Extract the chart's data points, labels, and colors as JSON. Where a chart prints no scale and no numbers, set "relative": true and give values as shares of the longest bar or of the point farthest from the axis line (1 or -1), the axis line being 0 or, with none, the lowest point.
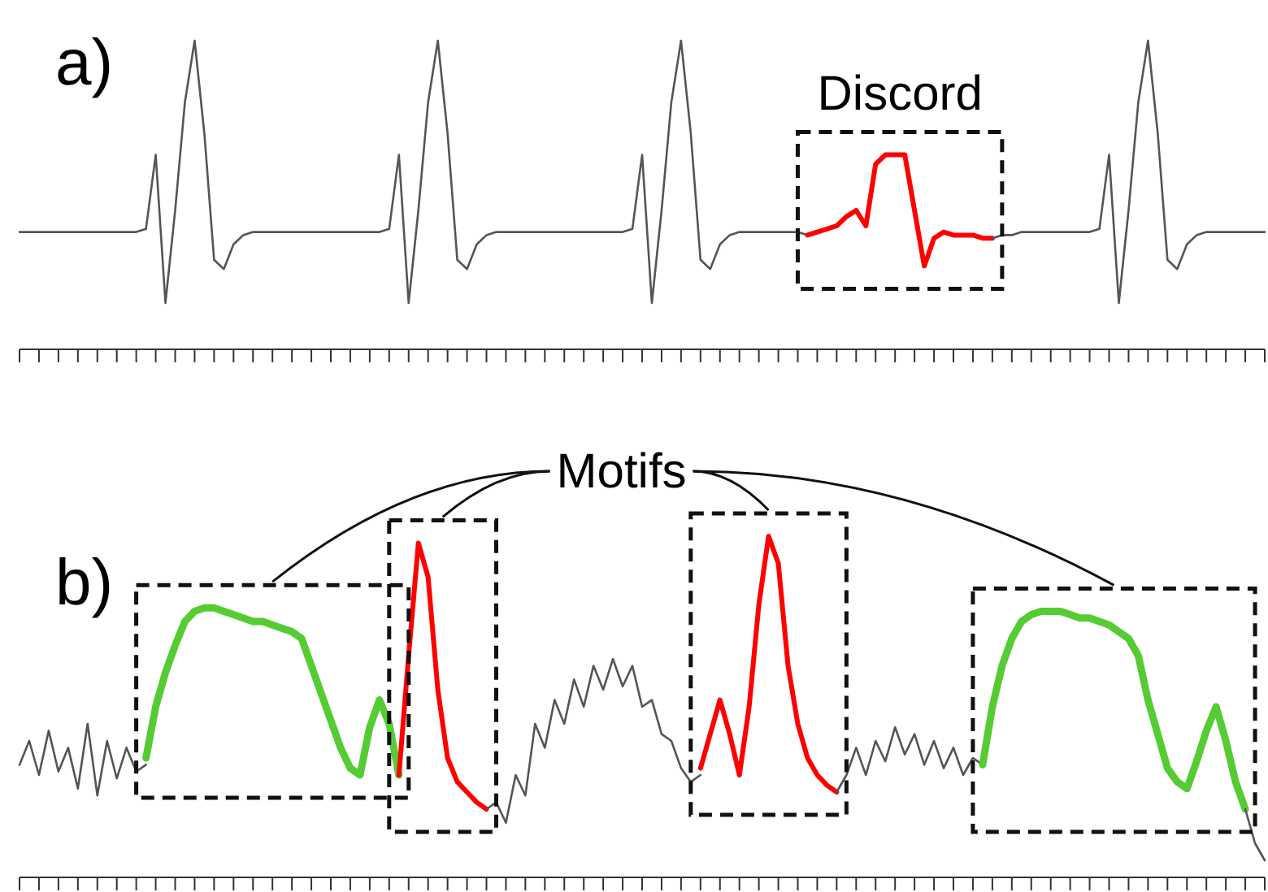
{
  "chart_data": [
    {
      "type": "line",
      "title": "a)",
      "relative": true,
      "categories": [
        null,
        null,
        null,
        null,
        null,
        null,
        null,
        null,
        null,
        null,
        null,
        null,
        null,
        null,
        null,
        null,
        null,
        null,
        null,
        null,
        null,
        null,
        null,
        null,
        null,
        null,
        null,
        null,
        null,
        null,
        null,
        null,
        null,
        null,
        null,
        null,
        null,
        null,
        null,
        null,
        null,
        null,
        null,
        null,
        null,
        null,
        null,
        null,
        null,
        null,
        null,
        null,
        null,
        null,
        null,
        null,
        null,
        null,
        null,
        null,
        null,
        null,
        null,
        null,
        null,
        null,
        null,
        null,
        null,
        null,
        null,
        null,
        null,
        null,
        null,
        null,
        null,
        null,
        null,
        null,
        null,
        null,
        null,
        null,
        null,
        null,
        null,
        null,
        null,
        null,
        null,
        null,
        null,
        null,
        null,
        null,
        null,
        null,
        null,
        null,
        null,
        null,
        null,
        null,
        null,
        null,
        null,
        null,
        null,
        null,
        null,
        null,
        null,
        null,
        null,
        null,
        null,
        null,
        null,
        null,
        null,
        null,
        null,
        null,
        null,
        null,
        null,
        null,
        null
      ],
      "series": [
        {
          "color": "#555555",
          "values": [
            0.38,
            0.38,
            0.38,
            0.38,
            0.38,
            0.38,
            0.38,
            0.38,
            0.38,
            0.38,
            0.38,
            0.38,
            0.38,
            0.39,
            0.63,
            0.15,
            0.45,
            0.8,
            1,
            0.7,
            0.29,
            0.26,
            0.34,
            0.37,
            0.38,
            0.38,
            0.38,
            0.38,
            0.38,
            0.38,
            0.38,
            0.38,
            0.38,
            0.38,
            0.38,
            0.38,
            0.38,
            0.38,
            0.39,
            0.63,
            0.15,
            0.45,
            0.8,
            1,
            0.7,
            0.29,
            0.26,
            0.34,
            0.37,
            0.38,
            0.38,
            0.38,
            0.38,
            0.38,
            0.38,
            0.38,
            0.38,
            0.38,
            0.38,
            0.38,
            0.38,
            0.38,
            0.38,
            0.39,
            0.63,
            0.15,
            0.45,
            0.8,
            1,
            0.7,
            0.29,
            0.26,
            0.34,
            0.37,
            0.38,
            0.38,
            0.38,
            0.38,
            0.38,
            0.38,
            0.38,
            0.37,
            null,
            null,
            null,
            null,
            null,
            null,
            null,
            null,
            null,
            null,
            null,
            null,
            null,
            null,
            null,
            null,
            null,
            null,
            null,
            null,
            null,
            null,
            null,
            null,
            null,
            null,
            null,
            null,
            null,
            null,
            null,
            null,
            null,
            null,
            null,
            null,
            null,
            null,
            null,
            null,
            null,
            null,
            null,
            null,
            null,
            null,
            null
          ]
        },
        {
          "color": "#ff0000",
          "values": [
            null,
            null,
            null,
            null,
            null,
            null,
            null,
            null,
            null,
            null,
            null,
            null,
            null,
            null,
            null,
            null,
            null,
            null,
            null,
            null,
            null,
            null,
            null,
            null,
            null,
            null,
            null,
            null,
            null,
            null,
            null,
            null,
            null,
            null,
            null,
            null,
            null,
            null,
            null,
            null,
            null,
            null,
            null,
            null,
            null,
            null,
            null,
            null,
            null,
            null,
            null,
            null,
            null,
            null,
            null,
            null,
            null,
            null,
            null,
            null,
            null,
            null,
            null,
            null,
            null,
            null,
            null,
            null,
            null,
            null,
            null,
            null,
            null,
            null,
            null,
            null,
            null,
            null,
            null,
            null,
            null,
            0.37,
            0.38,
            0.39,
            0.4,
            0.43,
            0.45,
            0.4,
            0.6,
            0.63,
            0.63,
            0.63,
            0.45,
            0.27,
            0.36,
            0.38,
            0.37,
            0.37,
            0.37,
            0.36,
            0.36,
            null,
            null,
            null,
            null,
            null,
            null,
            null,
            null,
            null,
            null,
            null,
            null,
            null,
            null,
            null,
            null,
            null,
            null,
            null,
            null,
            null,
            null,
            null,
            null,
            null,
            null,
            null,
            null
          ]
        },
        {
          "color": "#555555",
          "values": [
            null,
            null,
            null,
            null,
            null,
            null,
            null,
            null,
            null,
            null,
            null,
            null,
            null,
            null,
            null,
            null,
            null,
            null,
            null,
            null,
            null,
            null,
            null,
            null,
            null,
            null,
            null,
            null,
            null,
            null,
            null,
            null,
            null,
            null,
            null,
            null,
            null,
            null,
            null,
            null,
            null,
            null,
            null,
            null,
            null,
            null,
            null,
            null,
            null,
            null,
            null,
            null,
            null,
            null,
            null,
            null,
            null,
            null,
            null,
            null,
            null,
            null,
            null,
            null,
            null,
            null,
            null,
            null,
            null,
            null,
            null,
            null,
            null,
            null,
            null,
            null,
            null,
            null,
            null,
            null,
            null,
            null,
            null,
            null,
            null,
            null,
            null,
            null,
            null,
            null,
            null,
            null,
            null,
            null,
            null,
            null,
            null,
            null,
            null,
            null,
            0.36,
            0.37,
            0.37,
            0.38,
            0.38,
            0.38,
            0.38,
            0.38,
            0.38,
            0.38,
            0.38,
            0.39,
            0.63,
            0.15,
            0.45,
            0.8,
            1,
            0.7,
            0.29,
            0.26,
            0.34,
            0.37,
            0.38,
            0.38,
            0.38,
            0.38,
            0.38,
            0.38,
            0.38
          ]
        }
      ],
      "annotations": [
        "Discord"
      ]
    },
    {
      "type": "line",
      "title": "b)",
      "relative": true,
      "categories": [
        null,
        null,
        null,
        null,
        null,
        null,
        null,
        null,
        null,
        null,
        null,
        null,
        null,
        null,
        null,
        null,
        null,
        null,
        null,
        null,
        null,
        null,
        null,
        null,
        null,
        null,
        null,
        null,
        null,
        null,
        null,
        null,
        null,
        null,
        null,
        null,
        null,
        null,
        null,
        null,
        null,
        null,
        null,
        null,
        null,
        null,
        null,
        null,
        null,
        null,
        null,
        null,
        null,
        null,
        null,
        null,
        null,
        null,
        null,
        null,
        null,
        null,
        null,
        null,
        null,
        null,
        null,
        null,
        null,
        null,
        null,
        null,
        null,
        null,
        null,
        null,
        null,
        null,
        null,
        null,
        null,
        null,
        null,
        null,
        null,
        null,
        null,
        null,
        null,
        null,
        null,
        null,
        null,
        null,
        null,
        null,
        null,
        null,
        null,
        null,
        null,
        null,
        null,
        null,
        null,
        null,
        null,
        null,
        null,
        null,
        null,
        null,
        null,
        null,
        null,
        null,
        null,
        null,
        null,
        null,
        null,
        null,
        null,
        null,
        null,
        null,
        null,
        null,
        null
      ],
      "series": [
        {
          "color": "#555555",
          "values": [
            0.33,
            0.4,
            0.3,
            0.43,
            0.31,
            0.38,
            0.26,
            0.45,
            0.24,
            0.4,
            0.29,
            0.38,
            0.31,
            0.33,
            null,
            null,
            null,
            null,
            null,
            null,
            null,
            null,
            null,
            null,
            null,
            null,
            null,
            null,
            null,
            null,
            null,
            null,
            null,
            null,
            null,
            null,
            null,
            null,
            null,
            null,
            null,
            null,
            null,
            null,
            null,
            null,
            null,
            null,
            null,
            null,
            null,
            null,
            null,
            null,
            null,
            null,
            null,
            null,
            null,
            null,
            null,
            null,
            null,
            null,
            null,
            null,
            null,
            null,
            null,
            null,
            null,
            null,
            null,
            null,
            null,
            null,
            null,
            null,
            null,
            null,
            null,
            null,
            null,
            null,
            null,
            null,
            null,
            null,
            null,
            null,
            null,
            null,
            null,
            null,
            null,
            null,
            null,
            null,
            null,
            null,
            null,
            null,
            null,
            null,
            null,
            null,
            null,
            null,
            null,
            null,
            null,
            null,
            null,
            null,
            null,
            null,
            null,
            null,
            null,
            null,
            null,
            null,
            null,
            null,
            null,
            null,
            null,
            null,
            null
          ]
        },
        {
          "color": "#55cc33",
          "values": [
            null,
            null,
            null,
            null,
            null,
            null,
            null,
            null,
            null,
            null,
            null,
            null,
            null,
            0.35,
            0.5,
            0.6,
            0.68,
            0.75,
            0.78,
            0.79,
            0.79,
            0.78,
            0.77,
            0.76,
            0.75,
            0.75,
            0.74,
            0.73,
            0.72,
            0.7,
            0.62,
            0.54,
            0.46,
            0.38,
            0.32,
            0.3,
            0.44,
            0.52,
            0.45,
            0.3,
            null,
            null,
            null,
            null,
            null,
            null,
            null,
            null,
            null,
            null,
            null,
            null,
            null,
            null,
            null,
            null,
            null,
            null,
            null,
            null,
            null,
            null,
            null,
            null,
            null,
            null,
            null,
            null,
            null,
            null,
            null,
            null,
            null,
            null,
            null,
            null,
            null,
            null,
            null,
            null,
            null,
            null,
            null,
            null,
            null,
            null,
            null,
            null,
            null,
            null,
            null,
            null,
            null,
            null,
            null,
            null,
            null,
            null,
            null,
            null,
            null,
            null,
            null,
            null,
            null,
            null,
            null,
            null,
            null,
            null,
            null,
            null,
            null,
            null,
            null,
            null,
            null,
            null,
            null,
            null,
            null,
            null,
            null,
            null,
            null,
            null,
            null,
            null,
            null
          ]
        },
        {
          "color": "#ff0000",
          "values": [
            null,
            null,
            null,
            null,
            null,
            null,
            null,
            null,
            null,
            null,
            null,
            null,
            null,
            null,
            null,
            null,
            null,
            null,
            null,
            null,
            null,
            null,
            null,
            null,
            null,
            null,
            null,
            null,
            null,
            null,
            null,
            null,
            null,
            null,
            null,
            null,
            null,
            null,
            null,
            0.3,
            0.65,
            0.98,
            0.88,
            0.55,
            0.35,
            0.28,
            0.25,
            0.22,
            0.2,
            null,
            null,
            null,
            null,
            null,
            null,
            null,
            null,
            null,
            null,
            null,
            null,
            null,
            null,
            null,
            null,
            null,
            null,
            null,
            null,
            null,
            null,
            null,
            null,
            null,
            null,
            null,
            null,
            null,
            null,
            null,
            null,
            null,
            null,
            null,
            null,
            null,
            null,
            null,
            null,
            null,
            null,
            null,
            null,
            null,
            null,
            null,
            null,
            null,
            null,
            null,
            null,
            null,
            null,
            null,
            null,
            null,
            null,
            null,
            null,
            null,
            null,
            null,
            null,
            null,
            null,
            null,
            null,
            null,
            null,
            null,
            null,
            null,
            null,
            null,
            null,
            null,
            null,
            null,
            null
          ]
        },
        {
          "color": "#555555",
          "values": [
            null,
            null,
            null,
            null,
            null,
            null,
            null,
            null,
            null,
            null,
            null,
            null,
            null,
            null,
            null,
            null,
            null,
            null,
            null,
            null,
            null,
            null,
            null,
            null,
            null,
            null,
            null,
            null,
            null,
            null,
            null,
            null,
            null,
            null,
            null,
            null,
            null,
            null,
            null,
            null,
            null,
            null,
            null,
            null,
            null,
            null,
            null,
            null,
            0.2,
            0.22,
            0.16,
            0.3,
            0.24,
            0.45,
            0.38,
            0.52,
            0.45,
            0.58,
            0.5,
            0.62,
            0.55,
            0.64,
            0.56,
            0.62,
            0.5,
            0.52,
            0.42,
            0.4,
            0.32,
            0.28,
            0.3,
            null,
            null,
            null,
            null,
            null,
            null,
            null,
            null,
            null,
            null,
            null,
            null,
            null,
            null,
            null,
            null,
            null,
            null,
            null,
            null,
            null,
            null,
            null,
            null,
            null,
            null,
            null,
            null,
            null,
            null,
            null,
            null,
            null,
            null,
            null,
            null,
            null,
            null,
            null,
            null,
            null,
            null,
            null,
            null,
            null,
            null,
            null,
            null,
            null,
            null,
            null,
            null,
            null,
            null,
            null,
            null,
            null,
            null
          ]
        },
        {
          "color": "#ff0000",
          "values": [
            null,
            null,
            null,
            null,
            null,
            null,
            null,
            null,
            null,
            null,
            null,
            null,
            null,
            null,
            null,
            null,
            null,
            null,
            null,
            null,
            null,
            null,
            null,
            null,
            null,
            null,
            null,
            null,
            null,
            null,
            null,
            null,
            null,
            null,
            null,
            null,
            null,
            null,
            null,
            null,
            null,
            null,
            null,
            null,
            null,
            null,
            null,
            null,
            null,
            null,
            null,
            null,
            null,
            null,
            null,
            null,
            null,
            null,
            null,
            null,
            null,
            null,
            null,
            null,
            null,
            null,
            null,
            null,
            null,
            null,
            0.32,
            0.42,
            0.52,
            0.42,
            0.3,
            0.5,
            0.8,
            1,
            0.92,
            0.62,
            0.45,
            0.35,
            0.3,
            0.27,
            0.25,
            null,
            null,
            null,
            null,
            null,
            null,
            null,
            null,
            null,
            null,
            null,
            null,
            null,
            null,
            null,
            null,
            null,
            null,
            null,
            null,
            null,
            null,
            null,
            null,
            null,
            null,
            null,
            null,
            null,
            null,
            null,
            null,
            null,
            null,
            null,
            null,
            null,
            null,
            null,
            null,
            null,
            null,
            null,
            null
          ]
        },
        {
          "color": "#555555",
          "values": [
            null,
            null,
            null,
            null,
            null,
            null,
            null,
            null,
            null,
            null,
            null,
            null,
            null,
            null,
            null,
            null,
            null,
            null,
            null,
            null,
            null,
            null,
            null,
            null,
            null,
            null,
            null,
            null,
            null,
            null,
            null,
            null,
            null,
            null,
            null,
            null,
            null,
            null,
            null,
            null,
            null,
            null,
            null,
            null,
            null,
            null,
            null,
            null,
            null,
            null,
            null,
            null,
            null,
            null,
            null,
            null,
            null,
            null,
            null,
            null,
            null,
            null,
            null,
            null,
            null,
            null,
            null,
            null,
            null,
            null,
            null,
            null,
            null,
            null,
            null,
            null,
            null,
            null,
            null,
            null,
            null,
            null,
            null,
            null,
            0.25,
            0.3,
            0.38,
            0.3,
            0.4,
            0.34,
            0.44,
            0.36,
            0.42,
            0.33,
            0.4,
            0.32,
            0.38,
            0.3,
            0.35,
            0.33,
            null,
            null,
            null,
            null,
            null,
            null,
            null,
            null,
            null,
            null,
            null,
            null,
            null,
            null,
            null,
            null,
            null,
            null,
            null,
            null,
            null,
            null,
            null,
            null,
            null,
            null,
            null,
            null,
            null
          ]
        },
        {
          "color": "#55cc33",
          "values": [
            null,
            null,
            null,
            null,
            null,
            null,
            null,
            null,
            null,
            null,
            null,
            null,
            null,
            null,
            null,
            null,
            null,
            null,
            null,
            null,
            null,
            null,
            null,
            null,
            null,
            null,
            null,
            null,
            null,
            null,
            null,
            null,
            null,
            null,
            null,
            null,
            null,
            null,
            null,
            null,
            null,
            null,
            null,
            null,
            null,
            null,
            null,
            null,
            null,
            null,
            null,
            null,
            null,
            null,
            null,
            null,
            null,
            null,
            null,
            null,
            null,
            null,
            null,
            null,
            null,
            null,
            null,
            null,
            null,
            null,
            null,
            null,
            null,
            null,
            null,
            null,
            null,
            null,
            null,
            null,
            null,
            null,
            null,
            null,
            null,
            null,
            null,
            null,
            null,
            null,
            null,
            null,
            null,
            null,
            null,
            null,
            null,
            null,
            null,
            0.33,
            0.5,
            0.62,
            0.7,
            0.75,
            0.77,
            0.78,
            0.78,
            0.78,
            0.77,
            0.76,
            0.76,
            0.75,
            0.74,
            0.72,
            0.7,
            0.65,
            0.52,
            0.42,
            0.32,
            0.28,
            0.26,
            0.34,
            0.43,
            0.5,
            0.4,
            0.28,
            0.2,
            null,
            null
          ]
        },
        {
          "color": "#555555",
          "values": [
            null,
            null,
            null,
            null,
            null,
            null,
            null,
            null,
            null,
            null,
            null,
            null,
            null,
            null,
            null,
            null,
            null,
            null,
            null,
            null,
            null,
            null,
            null,
            null,
            null,
            null,
            null,
            null,
            null,
            null,
            null,
            null,
            null,
            null,
            null,
            null,
            null,
            null,
            null,
            null,
            null,
            null,
            null,
            null,
            null,
            null,
            null,
            null,
            null,
            null,
            null,
            null,
            null,
            null,
            null,
            null,
            null,
            null,
            null,
            null,
            null,
            null,
            null,
            null,
            null,
            null,
            null,
            null,
            null,
            null,
            null,
            null,
            null,
            null,
            null,
            null,
            null,
            null,
            null,
            null,
            null,
            null,
            null,
            null,
            null,
            null,
            null,
            null,
            null,
            null,
            null,
            null,
            null,
            null,
            null,
            null,
            null,
            null,
            null,
            null,
            null,
            null,
            null,
            null,
            null,
            null,
            null,
            null,
            null,
            null,
            null,
            null,
            null,
            null,
            null,
            null,
            null,
            null,
            null,
            null,
            null,
            null,
            null,
            null,
            null,
            null,
            0.2,
            0.1,
            0.05
          ]
        }
      ],
      "annotations": [
        "Motifs"
      ]
    }
  ]
}
